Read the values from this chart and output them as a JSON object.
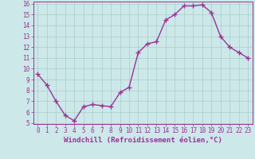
{
  "x": [
    0,
    1,
    2,
    3,
    4,
    5,
    6,
    7,
    8,
    9,
    10,
    11,
    12,
    13,
    14,
    15,
    16,
    17,
    18,
    19,
    20,
    21,
    22,
    23
  ],
  "y": [
    9.5,
    8.5,
    7.0,
    5.7,
    5.2,
    6.5,
    6.7,
    6.6,
    6.5,
    7.8,
    8.3,
    11.5,
    12.3,
    12.5,
    14.5,
    15.0,
    15.8,
    15.8,
    15.9,
    15.2,
    13.0,
    12.0,
    11.5,
    11.0
  ],
  "line_color": "#993399",
  "marker": "+",
  "marker_size": 4,
  "bg_color": "#cce8e8",
  "grid_color": "#aacccc",
  "xlabel": "Windchill (Refroidissement éolien,°C)",
  "ylim": [
    5,
    16
  ],
  "xlim": [
    -0.5,
    23.5
  ],
  "yticks": [
    5,
    6,
    7,
    8,
    9,
    10,
    11,
    12,
    13,
    14,
    15,
    16
  ],
  "xticks": [
    0,
    1,
    2,
    3,
    4,
    5,
    6,
    7,
    8,
    9,
    10,
    11,
    12,
    13,
    14,
    15,
    16,
    17,
    18,
    19,
    20,
    21,
    22,
    23
  ],
  "tick_fontsize": 5.5,
  "label_fontsize": 6.5,
  "line_width": 1.0
}
